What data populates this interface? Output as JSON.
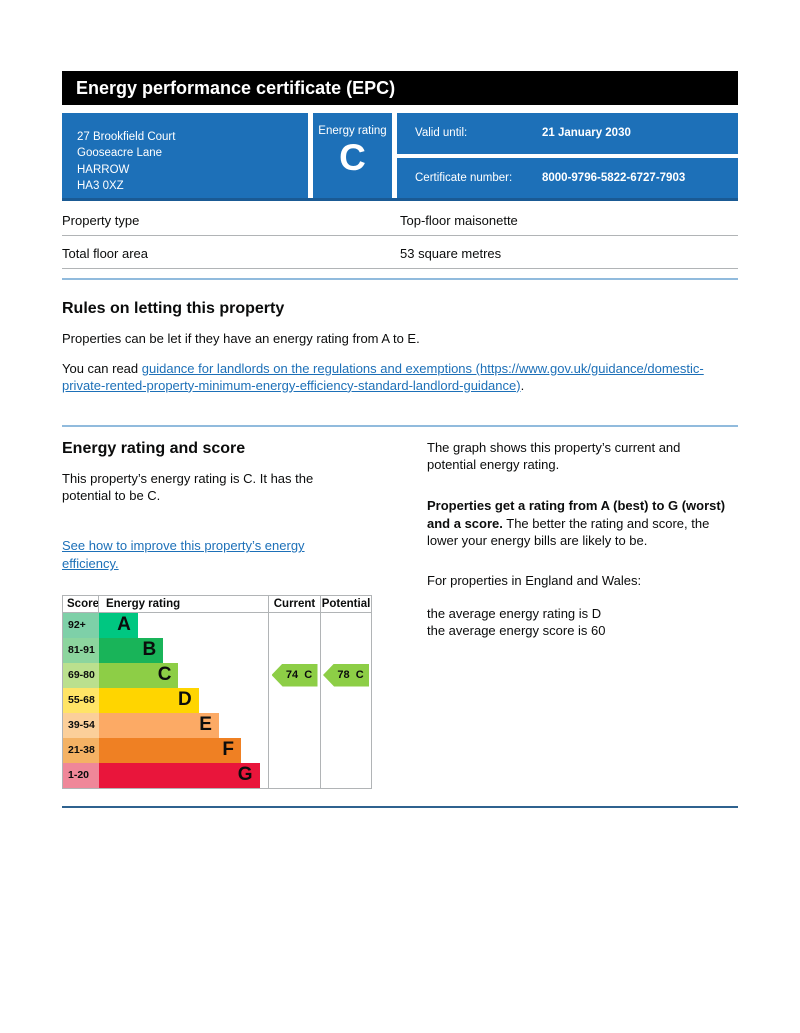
{
  "colors": {
    "govuk_blue": "#1d70b8",
    "divider_light_blue": "#91bbdd",
    "divider_dark_blue": "#2f628f"
  },
  "header": {
    "title": "Energy performance certificate (EPC)",
    "address_lines": [
      "27 Brookfield Court",
      "Gooseacre Lane",
      "HARROW",
      "HA3 0XZ"
    ],
    "energy_rating_label": "Energy rating",
    "energy_rating_value": "C",
    "valid_until_label": "Valid until:",
    "valid_until_value": "21 January 2030",
    "certificate_number_label": "Certificate number:",
    "certificate_number_value": "8000-9796-5822-6727-7903"
  },
  "property_facts": [
    {
      "label": "Property type",
      "value": "Top-floor maisonette"
    },
    {
      "label": "Total floor area",
      "value": "53 square metres"
    }
  ],
  "rules_section": {
    "heading": "Rules on letting this property",
    "body": "Properties can be let if they have an energy rating from A to E.",
    "read_prefix": "You can read ",
    "link_text": "guidance for landlords on the regulations and exemptions (https://www.gov.uk/guidance/domestic-private-rented-property-minimum-energy-efficiency-standard-landlord-guidance)",
    "read_suffix": "."
  },
  "rating_section": {
    "heading": "Energy rating and score",
    "summary": "This property’s energy rating is C. It has the potential to be C.",
    "improve_link": "See how to improve this property’s energy efficiency.",
    "graph_intro": "The graph shows this property’s current and potential energy rating.",
    "explain_bold": "Properties get a rating from A (best) to G (worst) and a score.",
    "explain_rest": " The better the rating and score, the lower your energy bills are likely to be.",
    "england_wales": "For properties in England and Wales:",
    "avg_rating": "the average energy rating is D",
    "avg_score": "the average energy score is 60"
  },
  "chart_data": {
    "type": "bar",
    "title": "Energy rating and score",
    "columns": {
      "score": "Score",
      "rating": "Energy rating",
      "current": "Current",
      "potential": "Potential"
    },
    "bands": [
      {
        "score_range": "92+",
        "letter": "A",
        "color": "#00c781",
        "tint": "#7ed0a8",
        "width_pct": 23
      },
      {
        "score_range": "81-91",
        "letter": "B",
        "color": "#19b459",
        "tint": "#8cd59e",
        "width_pct": 38
      },
      {
        "score_range": "69-80",
        "letter": "C",
        "color": "#8dce46",
        "tint": "#bbe08e",
        "width_pct": 47
      },
      {
        "score_range": "55-68",
        "letter": "D",
        "color": "#ffd500",
        "tint": "#ffe466",
        "width_pct": 59
      },
      {
        "score_range": "39-54",
        "letter": "E",
        "color": "#fcaa65",
        "tint": "#fbcf9a",
        "width_pct": 71
      },
      {
        "score_range": "21-38",
        "letter": "F",
        "color": "#ef8023",
        "tint": "#f4b264",
        "width_pct": 84
      },
      {
        "score_range": "1-20",
        "letter": "G",
        "color": "#e9153b",
        "tint": "#ef8799",
        "width_pct": 95
      }
    ],
    "current": {
      "value": 74,
      "letter": "C",
      "band_index": 2,
      "color": "#8dce46"
    },
    "potential": {
      "value": 78,
      "letter": "C",
      "band_index": 2,
      "color": "#8dce46"
    }
  }
}
